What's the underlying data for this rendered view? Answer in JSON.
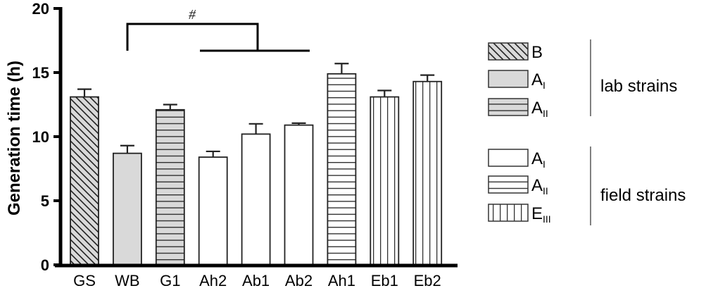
{
  "chart_data": {
    "type": "bar",
    "title": "",
    "xlabel": "",
    "ylabel": "Generation time (h)",
    "ylim": [
      0,
      20
    ],
    "yticks": [
      0,
      5,
      10,
      15,
      20
    ],
    "grid": false,
    "legend_position": "right",
    "categories": [
      "GS",
      "WB",
      "G1",
      "Ah2",
      "Ab1",
      "Ab2",
      "Ah1",
      "Eb1",
      "Eb2"
    ],
    "values": [
      13.1,
      8.7,
      12.1,
      8.4,
      10.2,
      10.9,
      14.9,
      13.1,
      14.3
    ],
    "errors": [
      0.6,
      0.6,
      0.4,
      0.45,
      0.8,
      0.15,
      0.8,
      0.5,
      0.5
    ],
    "bar_styles": [
      "B",
      "AI-lab",
      "AII-lab",
      "AI-field",
      "AI-field",
      "AI-field",
      "AII-field",
      "EIII-field",
      "EIII-field"
    ],
    "annotations": [
      {
        "text": "#",
        "type": "significance-bracket",
        "from": "WB",
        "to": [
          "Ah2",
          "Ab1",
          "Ab2"
        ]
      }
    ],
    "legend": {
      "groups": [
        {
          "label": "lab strains",
          "items": [
            {
              "key": "B",
              "main": "B",
              "sub": "",
              "pattern": "diagonal",
              "fill": "#d9d9d9"
            },
            {
              "key": "AI-lab",
              "main": "A",
              "sub": "I",
              "pattern": "solid",
              "fill": "#d9d9d9"
            },
            {
              "key": "AII-lab",
              "main": "A",
              "sub": "II",
              "pattern": "horizontal",
              "fill": "#d9d9d9"
            }
          ]
        },
        {
          "label": "field strains",
          "items": [
            {
              "key": "AI-field",
              "main": "A",
              "sub": "I",
              "pattern": "solid",
              "fill": "#ffffff"
            },
            {
              "key": "AII-field",
              "main": "A",
              "sub": "II",
              "pattern": "horizontal",
              "fill": "#ffffff"
            },
            {
              "key": "EIII-field",
              "main": "E",
              "sub": "III",
              "pattern": "vertical",
              "fill": "#ffffff"
            }
          ]
        }
      ]
    }
  },
  "colors": {
    "axis": "#000000",
    "bar_stroke": "#222222",
    "lab_fill": "#d9d9d9",
    "field_fill": "#ffffff"
  }
}
